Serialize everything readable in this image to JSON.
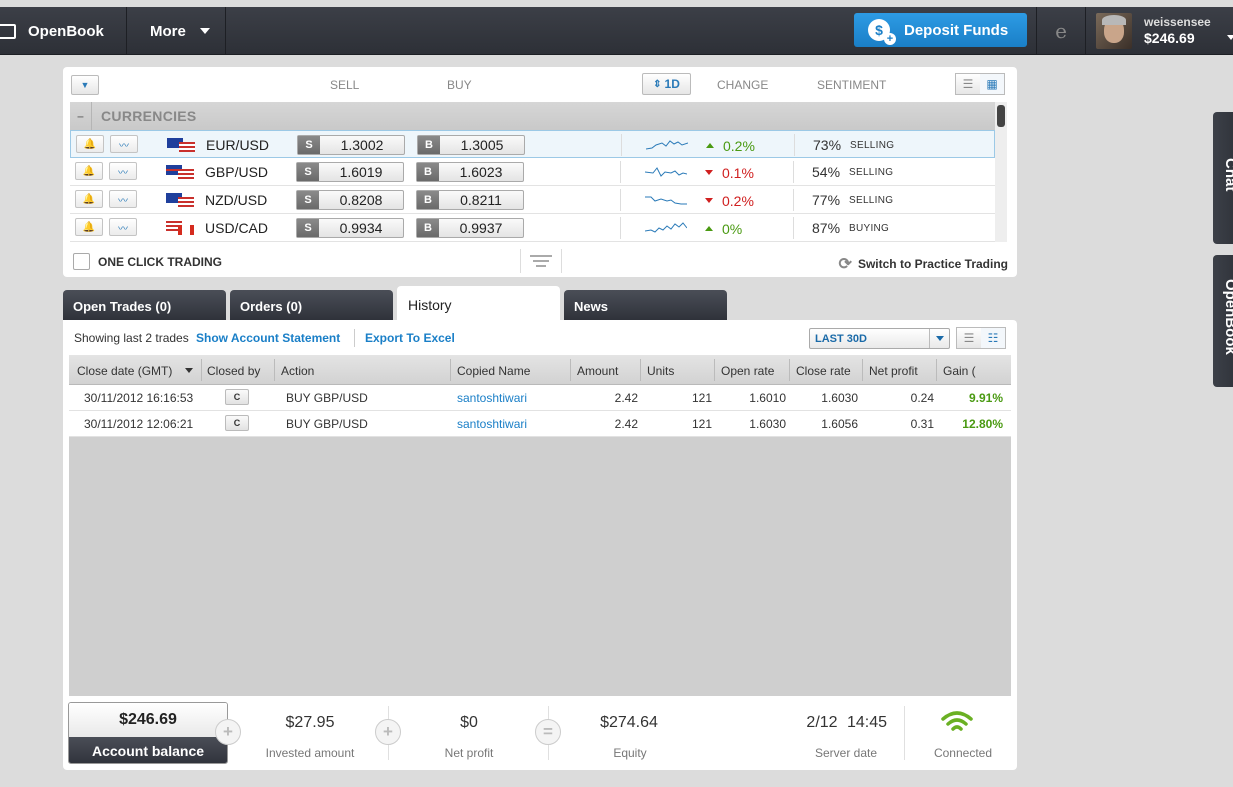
{
  "topbar": {
    "logo_label": "OpenBook",
    "more_label": "More",
    "deposit_label": "Deposit Funds",
    "deposit_symbol": "$",
    "e_symbol": "e",
    "user_name": "weissensee",
    "user_balance": "$246.69"
  },
  "side_tabs": {
    "chat": "Chat",
    "openbook": "OpenBook"
  },
  "markets": {
    "col_sell": "SELL",
    "col_buy": "BUY",
    "period": "1D",
    "period_arrows": "⇕",
    "col_change": "CHANGE",
    "col_sentiment": "SENTIMENT",
    "group_toggle": "–",
    "group_label": "CURRENCIES",
    "sell_tag": "S",
    "buy_tag": "B",
    "rows": [
      {
        "pair": "EUR/USD",
        "sell": "1.3002",
        "buy": "1.3005",
        "change": "0.2%",
        "sentiment_pct": "73%",
        "sentiment": "SELLING"
      },
      {
        "pair": "GBP/USD",
        "sell": "1.6019",
        "buy": "1.6023",
        "change": "0.1%",
        "sentiment_pct": "54%",
        "sentiment": "SELLING"
      },
      {
        "pair": "NZD/USD",
        "sell": "0.8208",
        "buy": "0.8211",
        "change": "0.2%",
        "sentiment_pct": "77%",
        "sentiment": "SELLING"
      },
      {
        "pair": "USD/CAD",
        "sell": "0.9934",
        "buy": "0.9937",
        "change": "0%",
        "sentiment_pct": "87%",
        "sentiment": "BUYING"
      }
    ],
    "one_click_label": "ONE CLICK TRADING",
    "practice_label": "Switch to Practice Trading"
  },
  "tabs": {
    "open_trades": "Open Trades (0)",
    "orders": "Orders (0)",
    "history": "History",
    "news": "News"
  },
  "history": {
    "showing": "Showing last 2 trades",
    "show_statement": "Show Account Statement",
    "export": "Export To Excel",
    "period": "LAST 30D",
    "columns": {
      "close_date": "Close date (GMT)",
      "closed_by": "Closed by",
      "action": "Action",
      "copied_name": "Copied Name",
      "amount": "Amount",
      "units": "Units",
      "open_rate": "Open rate",
      "close_rate": "Close rate",
      "net_profit": "Net profit",
      "gain": "Gain ("
    },
    "rows": [
      {
        "close_date": "30/11/2012 16:16:53",
        "closed_by": "C",
        "action": "BUY GBP/USD",
        "copied_name": "santoshtiwari",
        "amount": "2.42",
        "units": "121",
        "open_rate": "1.6010",
        "close_rate": "1.6030",
        "net_profit": "0.24",
        "gain": "9.91%"
      },
      {
        "close_date": "30/11/2012 12:06:21",
        "closed_by": "C",
        "action": "BUY GBP/USD",
        "copied_name": "santoshtiwari",
        "amount": "2.42",
        "units": "121",
        "open_rate": "1.6030",
        "close_rate": "1.6056",
        "net_profit": "0.31",
        "gain": "12.80%"
      }
    ]
  },
  "footer": {
    "account_balance": "$246.69",
    "account_balance_label": "Account balance",
    "invested": "$27.95",
    "invested_label": "Invested amount",
    "net_profit": "$0",
    "net_profit_label": "Net profit",
    "equity": "$274.64",
    "equity_label": "Equity",
    "server_date": "2/12",
    "server_time": "14:45",
    "server_date_label": "Server date",
    "connected_label": "Connected",
    "plus": "+",
    "equals": "="
  },
  "colors": {
    "accent_blue": "#1a7fc7",
    "positive": "#4a9a12",
    "negative": "#d02020",
    "topbar": "#2d3037"
  }
}
